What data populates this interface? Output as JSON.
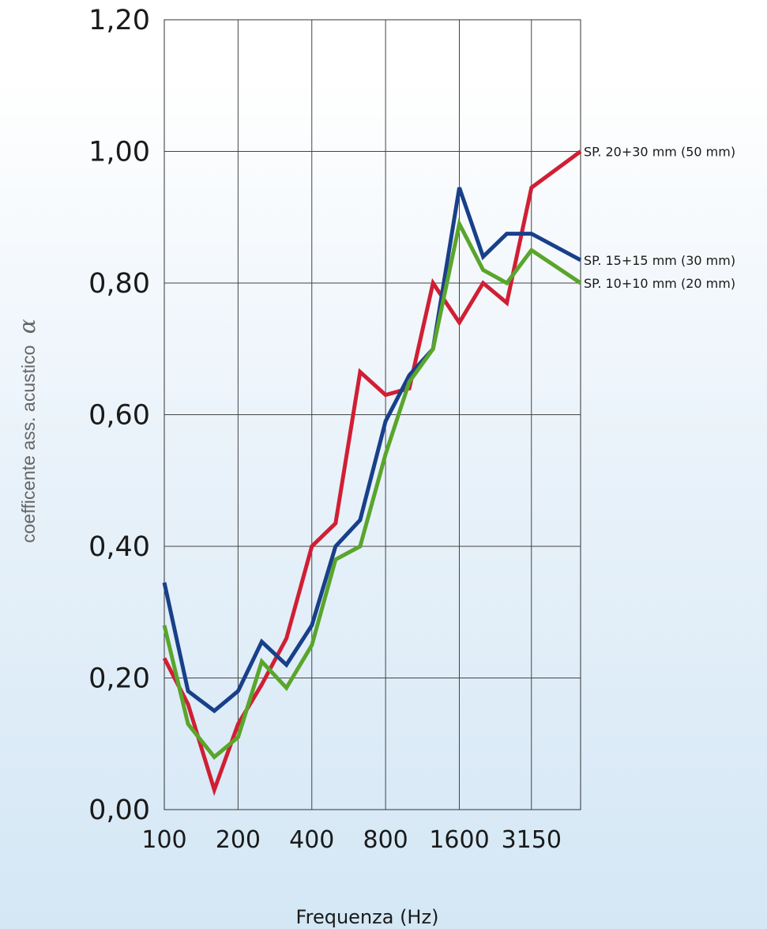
{
  "chart_data": {
    "type": "line",
    "title": "",
    "xlabel": "Frequenza (Hz)",
    "ylabel": "coefficente ass. acustico",
    "ylabel_symbol": "α",
    "x_scale": "log",
    "x_tick_labels": [
      "100",
      "200",
      "400",
      "800",
      "1600",
      "3150"
    ],
    "y_tick_labels": [
      "0,00",
      "0,20",
      "0,40",
      "0,60",
      "0,80",
      "1,00",
      "1,20"
    ],
    "ylim": [
      0,
      1.2
    ],
    "grid": true,
    "x": [
      100,
      125,
      160,
      200,
      250,
      315,
      400,
      500,
      630,
      800,
      1000,
      1250,
      1600,
      2000,
      2500,
      3150,
      5000
    ],
    "series": [
      {
        "name": "SP. 20+30 mm (50 mm)",
        "color": "#d01f34",
        "values": [
          0.23,
          0.16,
          0.03,
          0.13,
          0.19,
          0.26,
          0.4,
          0.435,
          0.665,
          0.63,
          0.64,
          0.8,
          0.74,
          0.8,
          0.77,
          0.945,
          1.0
        ]
      },
      {
        "name": "SP. 15+15 mm (30 mm)",
        "color": "#18408a",
        "values": [
          0.345,
          0.18,
          0.15,
          0.18,
          0.255,
          0.22,
          0.28,
          0.4,
          0.44,
          0.59,
          0.66,
          0.7,
          0.945,
          0.84,
          0.875,
          0.875,
          0.835
        ]
      },
      {
        "name": "SP. 10+10 mm (20 mm)",
        "color": "#5aa52c",
        "values": [
          0.28,
          0.13,
          0.08,
          0.11,
          0.225,
          0.185,
          0.25,
          0.38,
          0.4,
          0.54,
          0.65,
          0.7,
          0.89,
          0.82,
          0.8,
          0.85,
          0.8
        ]
      }
    ]
  }
}
